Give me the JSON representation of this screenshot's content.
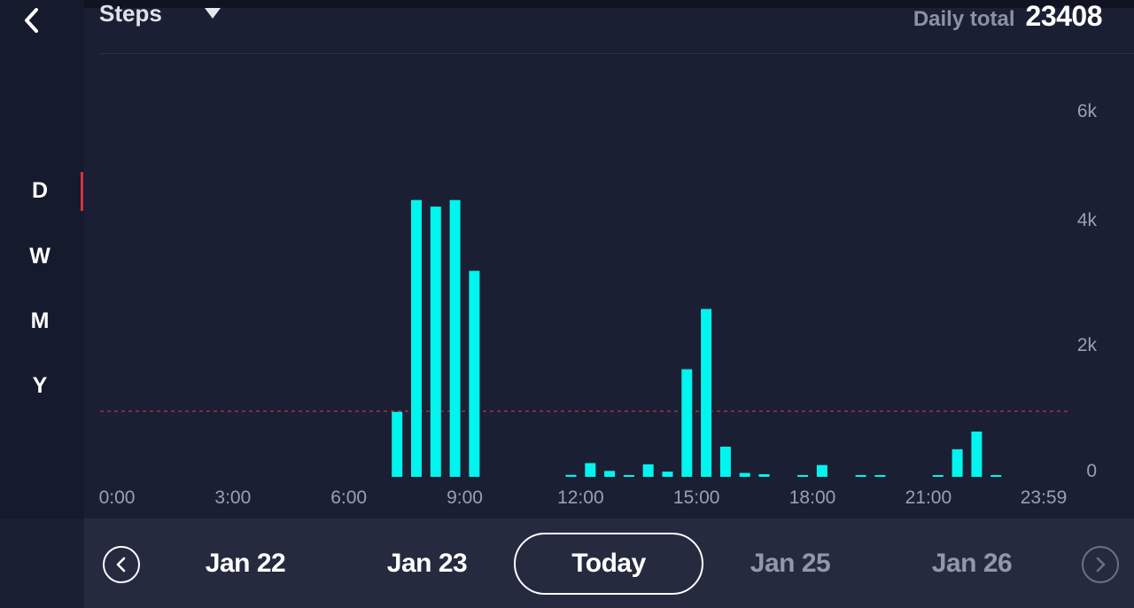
{
  "header": {
    "metric_label": "Steps",
    "daily_total_label": "Daily total",
    "daily_total_value": "23408"
  },
  "sidebar": {
    "periods": [
      "D",
      "W",
      "M",
      "Y"
    ],
    "selected_period": "D"
  },
  "colors": {
    "bar": "#00f5ee",
    "goal_line": "#b6374a",
    "background": "#1b1f33",
    "bottom_bar": "#252a3f"
  },
  "chart_data": {
    "type": "bar",
    "x_tick_labels": [
      "0:00",
      "3:00",
      "6:00",
      "9:00",
      "12:00",
      "15:00",
      "18:00",
      "21:00",
      "23:59"
    ],
    "y_tick_labels": [
      "6k",
      "4k",
      "2k",
      "0"
    ],
    "y_tick_values": [
      6000,
      4000,
      2000,
      0
    ],
    "ylim": [
      0,
      6000
    ],
    "x_units": "half-hour slot start (hours)",
    "goal_line_value": 1000,
    "x": [
      7.0,
      7.5,
      8.0,
      8.5,
      9.0,
      11.5,
      12.0,
      12.5,
      13.0,
      13.5,
      14.0,
      14.5,
      15.0,
      15.5,
      16.0,
      16.5,
      17.5,
      18.0,
      19.0,
      19.5,
      21.0,
      21.5,
      22.0,
      22.5
    ],
    "values": [
      990,
      4220,
      4120,
      4220,
      3140,
      30,
      210,
      90,
      15,
      190,
      80,
      1640,
      2560,
      460,
      60,
      40,
      20,
      180,
      15,
      15,
      15,
      420,
      690,
      25
    ]
  },
  "date_nav": {
    "dates": [
      "Jan 22",
      "Jan 23",
      "Today",
      "Jan 25",
      "Jan 26"
    ],
    "selected": "Today"
  }
}
